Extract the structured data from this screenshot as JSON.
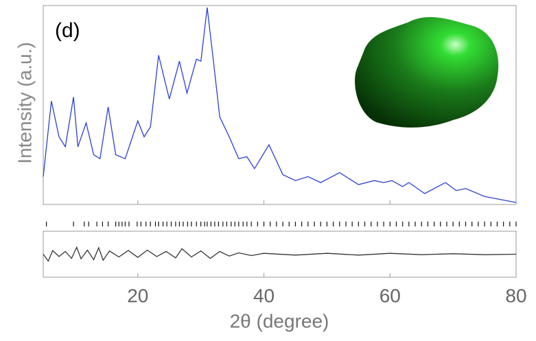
{
  "chart_data": [
    {
      "type": "line",
      "annotation": "(d)",
      "ylabel": "Intensity (a.u.)",
      "xlabel": "2θ (degree)",
      "xlim": [
        5,
        80
      ],
      "xticks": [
        20,
        40,
        60,
        80
      ],
      "ylim": [
        0,
        100
      ],
      "series": [
        {
          "color": "#2b3fd6",
          "x": [
            5,
            6.3,
            7.5,
            8.5,
            9.8,
            10.5,
            11.8,
            13,
            14,
            15.3,
            16.5,
            18,
            20,
            21,
            22,
            23.3,
            25,
            26.6,
            27.8,
            29.3,
            30,
            31,
            32,
            33,
            34.5,
            36,
            37.3,
            38.5,
            40.8,
            43,
            45,
            47,
            49,
            52,
            55,
            57.5,
            59,
            60.3,
            62,
            63,
            65.5,
            68.8,
            70.5,
            72,
            75,
            80
          ],
          "values": [
            14,
            52,
            34,
            29,
            54,
            29,
            41,
            25,
            23,
            49,
            25,
            23,
            42,
            34,
            39,
            75,
            53,
            72,
            56,
            73,
            72,
            99,
            72,
            44,
            34,
            23,
            24,
            18,
            30,
            15,
            12,
            14,
            11,
            16,
            10,
            12,
            11,
            12,
            9,
            11,
            5.5,
            11,
            7,
            8,
            4,
            1
          ]
        }
      ],
      "reflection_positions": [
        5.5,
        9.8,
        11.5,
        12.2,
        13.5,
        14.4,
        15.3,
        16.5,
        17.0,
        17.5,
        18.0,
        18.6,
        19.9,
        20.5,
        21.3,
        22.0,
        22.8,
        23.3,
        24.0,
        24.6,
        25.3,
        26.0,
        26.6,
        27.2,
        27.9,
        28.5,
        29.3,
        30.0,
        30.6,
        31.0,
        31.6,
        32.2,
        32.8,
        33.5,
        34.1,
        34.8,
        35.4,
        36.0,
        36.7,
        37.3,
        38,
        39,
        40,
        41,
        42,
        43,
        44,
        45,
        46,
        47,
        48,
        49,
        50,
        51,
        52,
        53,
        54,
        55,
        56,
        57,
        58,
        59,
        60,
        61,
        62,
        63,
        64,
        65,
        66,
        67,
        68,
        69,
        70,
        71,
        72,
        73,
        74,
        75,
        76,
        77,
        78,
        79,
        80
      ]
    },
    {
      "type": "line",
      "xlim": [
        5,
        80
      ],
      "ylim": [
        -5,
        5
      ],
      "series": [
        {
          "color": "#333333",
          "x": [
            5,
            5.8,
            6.5,
            7.5,
            8.5,
            9.5,
            10.3,
            11,
            12,
            13,
            13.8,
            14.5,
            15.5,
            17,
            18.5,
            20,
            21.5,
            23,
            24.5,
            26,
            27,
            28.5,
            30,
            31.5,
            33,
            34.5,
            36,
            38,
            40,
            45,
            50,
            55,
            60,
            65,
            70,
            75,
            80
          ],
          "values": [
            0,
            -1.5,
            0.8,
            -0.5,
            0.6,
            -0.9,
            1.5,
            -1,
            0.9,
            -1.2,
            1.4,
            -1.3,
            0.7,
            -0.6,
            0.8,
            -0.7,
            0.9,
            -0.5,
            0.6,
            -0.8,
            1.2,
            -0.6,
            0.7,
            -0.9,
            0.6,
            -0.4,
            0.3,
            -0.3,
            0.2,
            -0.2,
            0.2,
            -0.2,
            0.2,
            -0.1,
            0.1,
            -0.1,
            0
          ]
        }
      ]
    }
  ]
}
